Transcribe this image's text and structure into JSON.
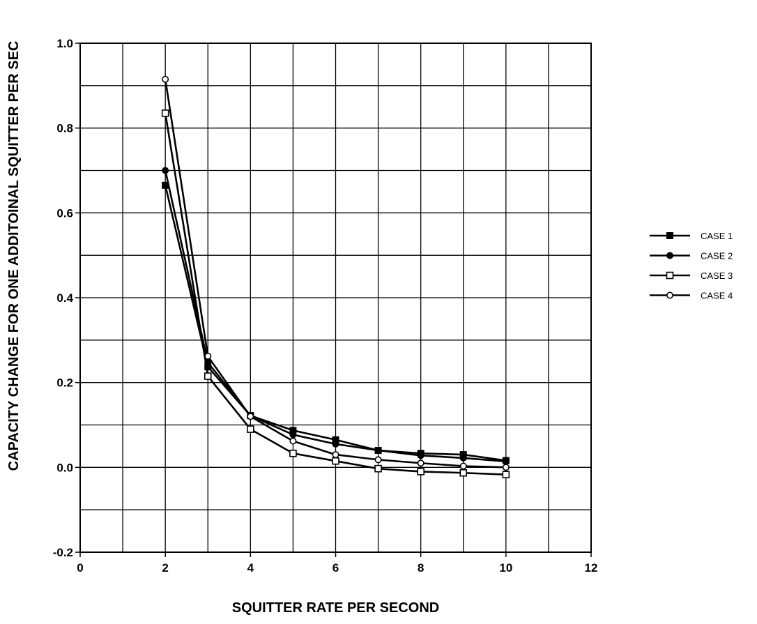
{
  "chart_data": {
    "type": "line",
    "title": "",
    "xlabel": "SQUITTER RATE PER SECOND",
    "ylabel": "CAPACITY CHANGE FOR ONE ADDITOINAL SQUITTER PER SEC",
    "xlim": [
      0,
      12
    ],
    "ylim": [
      -0.2,
      1.0
    ],
    "x_ticks": [
      "0",
      "2",
      "4",
      "6",
      "8",
      "10",
      "12"
    ],
    "y_ticks": [
      "-0.2",
      "0.0",
      "0.2",
      "0.4",
      "0.6",
      "0.8",
      "1.0"
    ],
    "grid": true,
    "legend_position": "right",
    "x": [
      2,
      3,
      4,
      5,
      6,
      7,
      8,
      9,
      10
    ],
    "series": [
      {
        "name": "CASE 1",
        "marker": "filled-square",
        "color": "#000000",
        "values": [
          0.665,
          0.237,
          0.122,
          0.087,
          0.065,
          0.04,
          0.033,
          0.03,
          0.016
        ]
      },
      {
        "name": "CASE 2",
        "marker": "filled-circle",
        "color": "#000000",
        "values": [
          0.7,
          0.247,
          0.122,
          0.077,
          0.055,
          0.04,
          0.028,
          0.022,
          0.014
        ]
      },
      {
        "name": "CASE 3",
        "marker": "open-square",
        "color": "#000000",
        "values": [
          0.835,
          0.215,
          0.09,
          0.033,
          0.015,
          -0.003,
          -0.01,
          -0.013,
          -0.017
        ]
      },
      {
        "name": "CASE 4",
        "marker": "open-circle",
        "color": "#000000",
        "values": [
          0.915,
          0.262,
          0.12,
          0.062,
          0.03,
          0.018,
          0.01,
          0.003,
          0.0
        ]
      }
    ]
  }
}
